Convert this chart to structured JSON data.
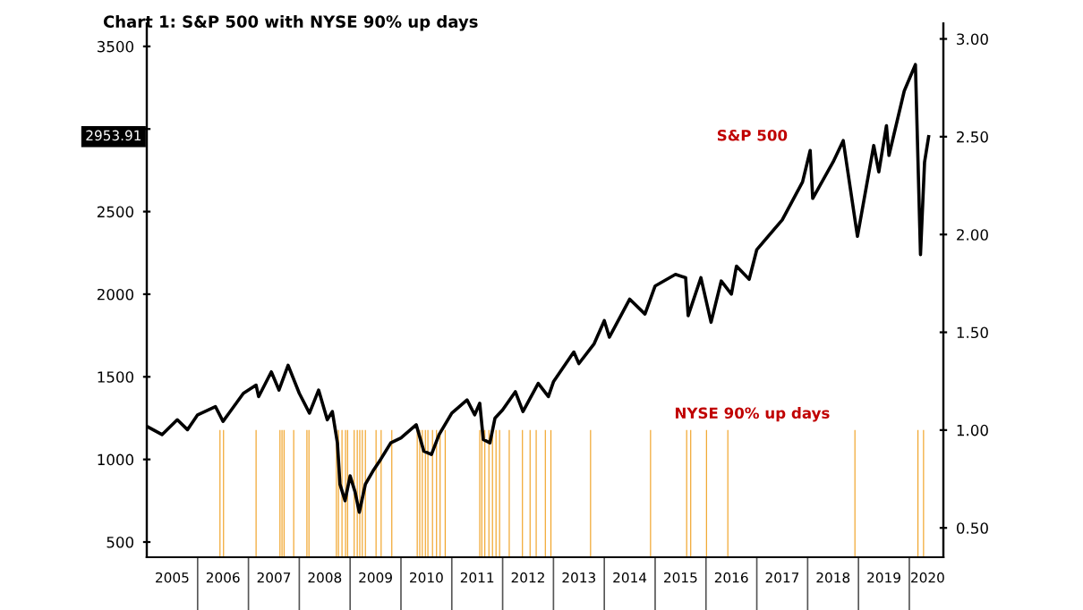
{
  "chart_data": {
    "type": "line",
    "title": "Chart 1: S&P 500 with NYSE 90% up days",
    "xlim": [
      2005.0,
      2020.67
    ],
    "xticks": [
      {
        "value": 2005.5,
        "label": "2005"
      },
      {
        "value": 2006.5,
        "label": "2006"
      },
      {
        "value": 2007.5,
        "label": "2007"
      },
      {
        "value": 2008.5,
        "label": "2008"
      },
      {
        "value": 2009.5,
        "label": "2009"
      },
      {
        "value": 2010.5,
        "label": "2010"
      },
      {
        "value": 2011.5,
        "label": "2011"
      },
      {
        "value": 2012.5,
        "label": "2012"
      },
      {
        "value": 2013.5,
        "label": "2013"
      },
      {
        "value": 2014.5,
        "label": "2014"
      },
      {
        "value": 2015.5,
        "label": "2015"
      },
      {
        "value": 2016.5,
        "label": "2016"
      },
      {
        "value": 2017.5,
        "label": "2017"
      },
      {
        "value": 2018.5,
        "label": "2018"
      },
      {
        "value": 2019.5,
        "label": "2019"
      },
      {
        "value": 2020.36,
        "label": "2020"
      }
    ],
    "ylim": [
      408,
      3640
    ],
    "yticks": [
      500,
      1000,
      1500,
      2000,
      2500,
      {
        "value": 3000,
        "label": null
      },
      3500
    ],
    "y2lim": [
      0.35,
      3.08
    ],
    "y2ticks": [
      {
        "value": 0.5,
        "label": "0.50"
      },
      {
        "value": 1.0,
        "label": "1.00"
      },
      {
        "value": 1.5,
        "label": "1.50"
      },
      {
        "value": 2.0,
        "label": "2.00"
      },
      {
        "value": 2.5,
        "label": "2.50"
      },
      {
        "value": 3.0,
        "label": "3.00"
      }
    ],
    "grid": false,
    "legend": false,
    "annotations": [
      "2953.91"
    ],
    "series": [
      {
        "name": "S&P 500",
        "color": "#000000",
        "x": [
          2005.0,
          2005.3,
          2005.6,
          2005.8,
          2006.0,
          2006.35,
          2006.5,
          2006.9,
          2007.15,
          2007.2,
          2007.45,
          2007.6,
          2007.78,
          2008.0,
          2008.2,
          2008.38,
          2008.55,
          2008.65,
          2008.75,
          2008.8,
          2008.9,
          2009.0,
          2009.1,
          2009.18,
          2009.3,
          2009.45,
          2009.6,
          2009.8,
          2010.0,
          2010.3,
          2010.45,
          2010.6,
          2010.75,
          2011.0,
          2011.3,
          2011.45,
          2011.55,
          2011.62,
          2011.75,
          2011.85,
          2012.0,
          2012.25,
          2012.4,
          2012.7,
          2012.9,
          2013.0,
          2013.4,
          2013.5,
          2013.8,
          2014.0,
          2014.1,
          2014.5,
          2014.8,
          2015.0,
          2015.4,
          2015.6,
          2015.65,
          2015.9,
          2016.1,
          2016.3,
          2016.5,
          2016.6,
          2016.85,
          2017.0,
          2017.5,
          2017.9,
          2018.05,
          2018.1,
          2018.5,
          2018.7,
          2018.98,
          2019.3,
          2019.4,
          2019.55,
          2019.6,
          2019.9,
          2020.12,
          2020.22,
          2020.3,
          2020.38
        ],
        "values": [
          1200,
          1150,
          1240,
          1180,
          1270,
          1320,
          1230,
          1400,
          1450,
          1380,
          1530,
          1420,
          1570,
          1400,
          1280,
          1420,
          1240,
          1290,
          1100,
          850,
          750,
          900,
          800,
          680,
          850,
          930,
          1000,
          1100,
          1130,
          1210,
          1050,
          1030,
          1150,
          1280,
          1360,
          1270,
          1340,
          1120,
          1100,
          1250,
          1300,
          1410,
          1290,
          1460,
          1380,
          1470,
          1650,
          1580,
          1700,
          1840,
          1740,
          1970,
          1880,
          2050,
          2120,
          2100,
          1870,
          2100,
          1830,
          2080,
          2000,
          2170,
          2090,
          2270,
          2450,
          2680,
          2870,
          2580,
          2800,
          2930,
          2350,
          2900,
          2740,
          3020,
          2840,
          3230,
          3390,
          2240,
          2800,
          2953.91
        ]
      },
      {
        "name": "NYSE 90% up days",
        "type": "bar",
        "axis": "y2",
        "color": "#f0a020",
        "x": [
          2006.44,
          2006.51,
          2007.15,
          2007.62,
          2007.66,
          2007.7,
          2007.89,
          2008.15,
          2008.19,
          2008.73,
          2008.77,
          2008.84,
          2008.91,
          2008.95,
          2009.08,
          2009.14,
          2009.19,
          2009.24,
          2009.3,
          2009.51,
          2009.61,
          2009.82,
          2010.32,
          2010.37,
          2010.42,
          2010.48,
          2010.53,
          2010.62,
          2010.7,
          2010.77,
          2010.87,
          2011.55,
          2011.59,
          2011.65,
          2011.73,
          2011.8,
          2011.87,
          2011.94,
          2012.13,
          2012.39,
          2012.54,
          2012.66,
          2012.84,
          2012.95,
          2013.73,
          2014.91,
          2015.62,
          2015.7,
          2016.01,
          2016.43,
          2018.93,
          2020.17,
          2020.28
        ],
        "values": [
          1,
          1,
          1,
          1,
          1,
          1,
          1,
          1,
          1,
          1,
          1,
          1,
          1,
          1,
          1,
          1,
          1,
          1,
          1,
          1,
          1,
          1,
          1,
          1,
          1,
          1,
          1,
          1,
          1,
          1,
          1,
          1,
          1,
          1,
          1,
          1,
          1,
          1,
          1,
          1,
          1,
          1,
          1,
          1,
          1,
          1,
          1,
          1,
          1,
          1,
          1,
          1,
          1
        ]
      }
    ]
  }
}
